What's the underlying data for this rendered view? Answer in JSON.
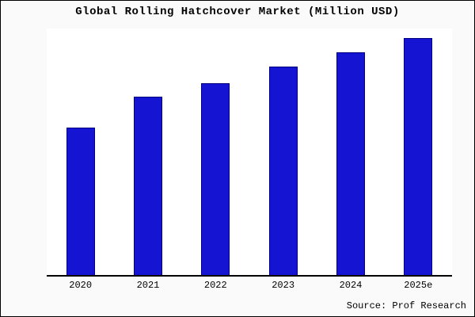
{
  "chart": {
    "title": "Global Rolling Hatchcover Market (Million USD)",
    "source": "Source: Prof Research"
  },
  "chart_data": {
    "type": "bar",
    "title": "Global Rolling Hatchcover Market (Million USD)",
    "categories": [
      "2020",
      "2021",
      "2022",
      "2023",
      "2024",
      "2025e"
    ],
    "values": [
      62,
      75,
      81,
      88,
      94,
      100
    ],
    "xlabel": "",
    "ylabel": "",
    "ylim": [
      0,
      105
    ],
    "grid": false,
    "legend": "none",
    "bar_color": "#1414d2",
    "bar_border_color": "#000080",
    "annotations": [
      "Source: Prof Research"
    ]
  }
}
